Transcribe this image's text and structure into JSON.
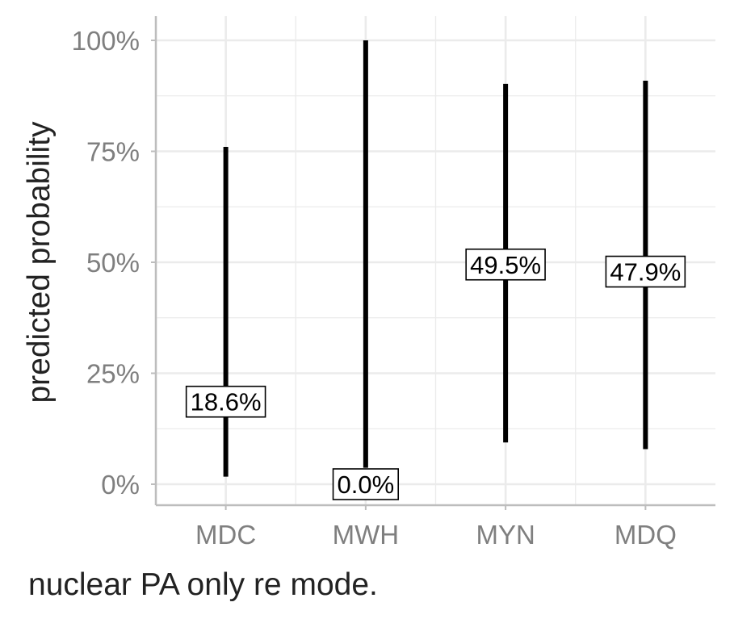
{
  "chart_data": {
    "type": "errorbar",
    "title": "",
    "xlabel": "nuclear PA only re mode.",
    "ylabel": "predicted probability",
    "categories": [
      "MDC",
      "MWH",
      "MYN",
      "MDQ"
    ],
    "estimates": [
      18.6,
      0.0,
      49.5,
      47.9
    ],
    "lower": [
      1.7,
      3.7,
      9.4,
      7.9
    ],
    "upper": [
      76.0,
      100.0,
      90.2,
      90.9
    ],
    "point_labels": [
      "18.6%",
      "0.0%",
      "49.5%",
      "47.9%"
    ],
    "ylim": [
      -4.5,
      105
    ],
    "yticks": [
      0,
      25,
      50,
      75,
      100
    ],
    "ytick_labels": [
      "0%",
      "25%",
      "50%",
      "75%",
      "100%"
    ],
    "grid": true,
    "legend": "none",
    "colors": {
      "interval": "#000000",
      "grid": "#ebebeb",
      "axis": "#bdbdbd",
      "tick_text": "#7f7f7f",
      "label_fill": "#ffffff",
      "label_border": "#000000"
    }
  }
}
